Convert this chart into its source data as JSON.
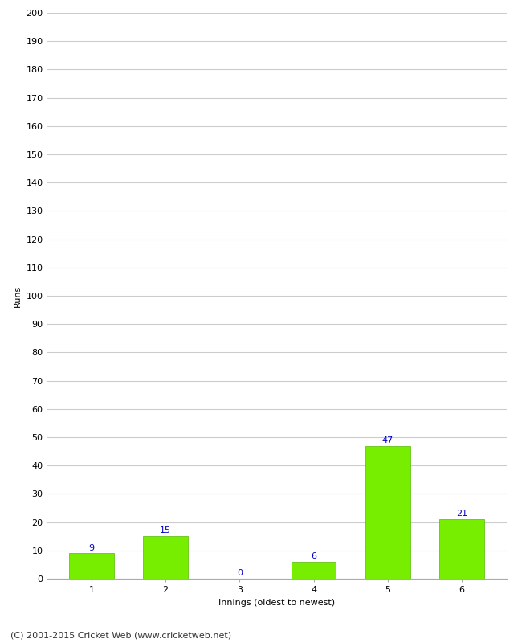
{
  "categories": [
    "1",
    "2",
    "3",
    "4",
    "5",
    "6"
  ],
  "values": [
    9,
    15,
    0,
    6,
    47,
    21
  ],
  "bar_color": "#77ee00",
  "bar_edge_color": "#55bb00",
  "label_color": "#0000cc",
  "xlabel": "Innings (oldest to newest)",
  "ylabel": "Runs",
  "ylim": [
    0,
    200
  ],
  "yticks": [
    0,
    10,
    20,
    30,
    40,
    50,
    60,
    70,
    80,
    90,
    100,
    110,
    120,
    130,
    140,
    150,
    160,
    170,
    180,
    190,
    200
  ],
  "background_color": "#ffffff",
  "grid_color": "#cccccc",
  "footer": "(C) 2001-2015 Cricket Web (www.cricketweb.net)",
  "label_fontsize": 8,
  "axis_tick_fontsize": 8,
  "footer_fontsize": 8,
  "xlabel_fontsize": 8,
  "ylabel_fontsize": 8,
  "bar_width": 0.6
}
